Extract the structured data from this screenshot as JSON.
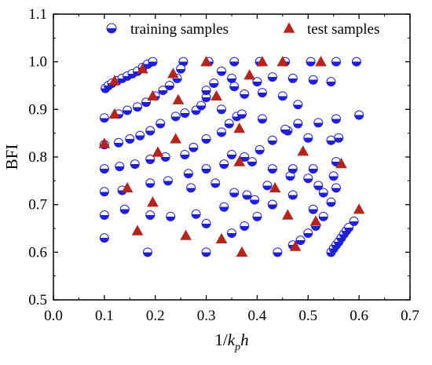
{
  "chart_data": {
    "type": "scatter",
    "xlabel": "1/k_ph",
    "xlabel_parts": {
      "pre": "1/",
      "italic_base": "k",
      "subscript": "p",
      "italic_tail": "h"
    },
    "ylabel": "BFI",
    "xlim": [
      0.0,
      0.7
    ],
    "ylim": [
      0.5,
      1.1
    ],
    "x_ticks": [
      "0.0",
      "0.1",
      "0.2",
      "0.3",
      "0.4",
      "0.5",
      "0.6",
      "0.7"
    ],
    "y_ticks": [
      "0.5",
      "0.6",
      "0.7",
      "0.8",
      "0.9",
      "1.0",
      "1.1"
    ],
    "legend": "top",
    "grid": false,
    "series": [
      {
        "name": "training samples",
        "marker": "half-filled-circle",
        "color": "#1f1fd6",
        "points": [
          [
            0.102,
            0.944
          ],
          [
            0.108,
            0.95
          ],
          [
            0.115,
            0.955
          ],
          [
            0.125,
            0.96
          ],
          [
            0.135,
            0.965
          ],
          [
            0.145,
            0.97
          ],
          [
            0.155,
            0.975
          ],
          [
            0.165,
            0.98
          ],
          [
            0.175,
            0.988
          ],
          [
            0.185,
            0.995
          ],
          [
            0.195,
            1.0
          ],
          [
            0.255,
            1.0
          ],
          [
            0.305,
            1.0
          ],
          [
            0.355,
            1.0
          ],
          [
            0.405,
            1.0
          ],
          [
            0.455,
            1.0
          ],
          [
            0.505,
            1.0
          ],
          [
            0.555,
            1.0
          ],
          [
            0.595,
            1.0
          ],
          [
            0.1,
            0.882
          ],
          [
            0.128,
            0.89
          ],
          [
            0.145,
            0.898
          ],
          [
            0.165,
            0.905
          ],
          [
            0.182,
            0.915
          ],
          [
            0.2,
            0.928
          ],
          [
            0.215,
            0.94
          ],
          [
            0.228,
            0.95
          ],
          [
            0.243,
            0.965
          ],
          [
            0.25,
            0.985
          ],
          [
            0.1,
            0.826
          ],
          [
            0.128,
            0.83
          ],
          [
            0.15,
            0.838
          ],
          [
            0.17,
            0.845
          ],
          [
            0.19,
            0.855
          ],
          [
            0.21,
            0.87
          ],
          [
            0.24,
            0.885
          ],
          [
            0.258,
            0.892
          ],
          [
            0.28,
            0.898
          ],
          [
            0.29,
            0.908
          ],
          [
            0.3,
            0.925
          ],
          [
            0.3,
            0.94
          ],
          [
            0.1,
            0.775
          ],
          [
            0.13,
            0.78
          ],
          [
            0.16,
            0.785
          ],
          [
            0.19,
            0.795
          ],
          [
            0.22,
            0.8
          ],
          [
            0.258,
            0.805
          ],
          [
            0.275,
            0.82
          ],
          [
            0.3,
            0.838
          ],
          [
            0.33,
            0.852
          ],
          [
            0.345,
            0.87
          ],
          [
            0.36,
            0.885
          ],
          [
            0.1,
            0.727
          ],
          [
            0.135,
            0.73
          ],
          [
            0.19,
            0.745
          ],
          [
            0.225,
            0.75
          ],
          [
            0.265,
            0.765
          ],
          [
            0.3,
            0.775
          ],
          [
            0.335,
            0.785
          ],
          [
            0.375,
            0.8
          ],
          [
            0.405,
            0.815
          ],
          [
            0.43,
            0.835
          ],
          [
            0.46,
            0.855
          ],
          [
            0.1,
            0.678
          ],
          [
            0.14,
            0.69
          ],
          [
            0.19,
            0.678
          ],
          [
            0.23,
            0.675
          ],
          [
            0.28,
            0.68
          ],
          [
            0.3,
            0.66
          ],
          [
            0.335,
            0.695
          ],
          [
            0.38,
            0.72
          ],
          [
            0.42,
            0.74
          ],
          [
            0.465,
            0.76
          ],
          [
            0.51,
            0.775
          ],
          [
            0.555,
            0.79
          ],
          [
            0.1,
            0.63
          ],
          [
            0.185,
            0.6
          ],
          [
            0.3,
            0.6
          ],
          [
            0.35,
            0.64
          ],
          [
            0.375,
            0.655
          ],
          [
            0.4,
            0.675
          ],
          [
            0.43,
            0.7
          ],
          [
            0.47,
            0.72
          ],
          [
            0.52,
            0.74
          ],
          [
            0.55,
            0.76
          ],
          [
            0.44,
            0.6
          ],
          [
            0.47,
            0.615
          ],
          [
            0.485,
            0.625
          ],
          [
            0.5,
            0.64
          ],
          [
            0.515,
            0.655
          ],
          [
            0.53,
            0.675
          ],
          [
            0.545,
            0.6
          ],
          [
            0.55,
            0.608
          ],
          [
            0.555,
            0.615
          ],
          [
            0.56,
            0.622
          ],
          [
            0.565,
            0.63
          ],
          [
            0.57,
            0.638
          ],
          [
            0.575,
            0.645
          ],
          [
            0.58,
            0.652
          ],
          [
            0.59,
            0.665
          ],
          [
            0.33,
            0.98
          ],
          [
            0.35,
            0.965
          ],
          [
            0.4,
            0.958
          ],
          [
            0.43,
            0.968
          ],
          [
            0.47,
            0.965
          ],
          [
            0.51,
            0.962
          ],
          [
            0.545,
            0.958
          ],
          [
            0.315,
            0.955
          ],
          [
            0.355,
            0.948
          ],
          [
            0.375,
            0.932
          ],
          [
            0.41,
            0.935
          ],
          [
            0.45,
            0.928
          ],
          [
            0.48,
            0.91
          ],
          [
            0.52,
            0.872
          ],
          [
            0.555,
            0.88
          ],
          [
            0.6,
            0.888
          ],
          [
            0.33,
            0.9
          ],
          [
            0.37,
            0.89
          ],
          [
            0.41,
            0.88
          ],
          [
            0.455,
            0.858
          ],
          [
            0.48,
            0.87
          ],
          [
            0.5,
            0.84
          ],
          [
            0.545,
            0.835
          ],
          [
            0.56,
            0.84
          ],
          [
            0.35,
            0.805
          ],
          [
            0.39,
            0.79
          ],
          [
            0.43,
            0.775
          ],
          [
            0.47,
            0.775
          ],
          [
            0.5,
            0.755
          ],
          [
            0.53,
            0.725
          ],
          [
            0.555,
            0.735
          ],
          [
            0.27,
            0.735
          ],
          [
            0.318,
            0.745
          ],
          [
            0.355,
            0.725
          ],
          [
            0.395,
            0.71
          ],
          [
            0.43,
            0.7
          ],
          [
            0.51,
            0.69
          ],
          [
            0.545,
            0.705
          ]
        ]
      },
      {
        "name": "test samples",
        "marker": "triangle",
        "color": "#b3261e",
        "points": [
          [
            0.12,
            0.96
          ],
          [
            0.175,
            0.985
          ],
          [
            0.235,
            0.975
          ],
          [
            0.3,
            1.0
          ],
          [
            0.41,
            1.0
          ],
          [
            0.45,
            1.0
          ],
          [
            0.525,
            1.0
          ],
          [
            0.195,
            0.928
          ],
          [
            0.245,
            0.92
          ],
          [
            0.32,
            0.928
          ],
          [
            0.385,
            0.972
          ],
          [
            0.12,
            0.89
          ],
          [
            0.1,
            0.828
          ],
          [
            0.205,
            0.81
          ],
          [
            0.24,
            0.838
          ],
          [
            0.365,
            0.86
          ],
          [
            0.49,
            0.812
          ],
          [
            0.565,
            0.786
          ],
          [
            0.365,
            0.79
          ],
          [
            0.435,
            0.735
          ],
          [
            0.145,
            0.735
          ],
          [
            0.195,
            0.705
          ],
          [
            0.46,
            0.678
          ],
          [
            0.515,
            0.665
          ],
          [
            0.6,
            0.69
          ],
          [
            0.165,
            0.645
          ],
          [
            0.26,
            0.635
          ],
          [
            0.33,
            0.628
          ],
          [
            0.37,
            0.6
          ],
          [
            0.475,
            0.612
          ]
        ]
      }
    ]
  }
}
